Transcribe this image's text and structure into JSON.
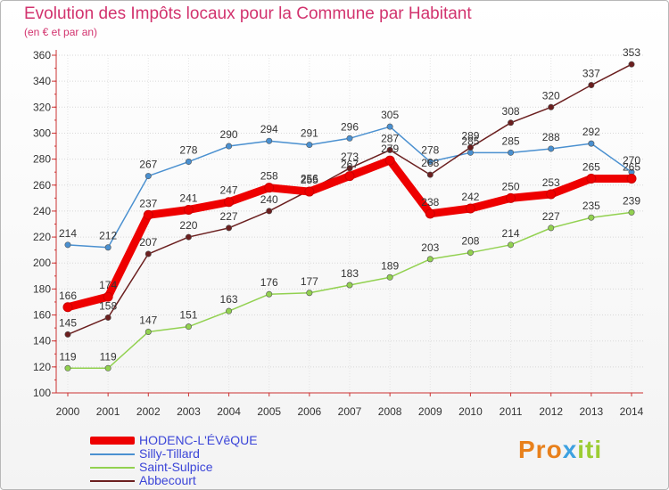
{
  "chart_data": {
    "type": "line",
    "title": "Evolution des Impôts locaux pour la Commune par Habitant",
    "subtitle": "(en € et par an)",
    "x": [
      "2000",
      "2001",
      "2002",
      "2003",
      "2004",
      "2005",
      "2006",
      "2007",
      "2008",
      "2009",
      "2010",
      "2011",
      "2012",
      "2013",
      "2014"
    ],
    "ylim": [
      100,
      360
    ],
    "yticks": [
      "100",
      "120",
      "140",
      "160",
      "180",
      "200",
      "220",
      "240",
      "260",
      "280",
      "300",
      "320",
      "340",
      "360"
    ],
    "grid": true,
    "legend_position": "bottom-left",
    "series": [
      {
        "name": "Silly-Tillard",
        "color": "#4a90d0",
        "values": [
          214,
          212,
          267,
          278,
          290,
          294,
          291,
          296,
          305,
          278,
          285,
          285,
          288,
          292,
          270
        ]
      },
      {
        "name": "Saint-Sulpice",
        "color": "#92d150",
        "values": [
          119,
          119,
          147,
          151,
          163,
          176,
          177,
          183,
          189,
          203,
          208,
          214,
          227,
          235,
          239
        ]
      },
      {
        "name": "Abbecourt",
        "color": "#6b1f1f",
        "values": [
          145,
          158,
          207,
          220,
          227,
          240,
          256,
          273,
          287,
          268,
          289,
          308,
          320,
          337,
          353
        ]
      },
      {
        "name": "HODENC-L'ÉVêQUE",
        "color": "#ee0000",
        "values": [
          166,
          174,
          237,
          241,
          247,
          258,
          255,
          267,
          279,
          238,
          242,
          250,
          253,
          265,
          265
        ]
      }
    ],
    "data_labels": {
      "Silly-Tillard": [
        "214",
        "212",
        "267",
        "278",
        "290",
        "294",
        "291",
        "296",
        "305",
        "278",
        "285",
        "285",
        "288",
        "292",
        "270"
      ],
      "Saint-Sulpice": [
        "119",
        "119",
        "147",
        "151",
        "163",
        "176",
        "177",
        "183",
        "189",
        "203",
        "208",
        "214",
        "227",
        "235",
        "239"
      ],
      "Abbecourt": [
        "145",
        "158",
        "207",
        "220",
        "227",
        "240",
        "256",
        "273",
        "287",
        "268",
        "289",
        "308",
        "320",
        "337",
        "353"
      ],
      "HODENC-L'ÉVêQUE": [
        "166",
        "174",
        "237",
        "241",
        "247",
        "258",
        "255",
        "267",
        "279",
        "238",
        "242",
        "250",
        "253",
        "265",
        "265"
      ]
    }
  },
  "legend": {
    "items": [
      {
        "label": "HODENC-L'ÉVêQUE",
        "color": "#ee0000"
      },
      {
        "label": "Silly-Tillard",
        "color": "#4a90d0"
      },
      {
        "label": "Saint-Sulpice",
        "color": "#92d150"
      },
      {
        "label": "Abbecourt",
        "color": "#6b1f1f"
      }
    ]
  },
  "logo": {
    "p1": "Pro",
    "p2": "x",
    "p3": "iti"
  }
}
